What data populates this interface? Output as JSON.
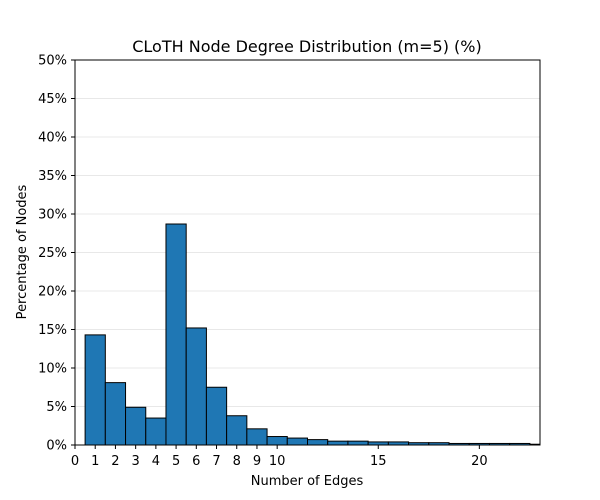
{
  "chart_data": {
    "type": "bar",
    "title": "CLoTH Node Degree Distribution (m=5) (%)",
    "xlabel": "Number of Edges",
    "ylabel": "Percentage of Nodes",
    "xlim": [
      0,
      23
    ],
    "ylim": [
      0,
      50
    ],
    "x_ticks": [
      0,
      1,
      2,
      3,
      4,
      5,
      6,
      7,
      8,
      9,
      10,
      15,
      20
    ],
    "y_ticks": [
      0,
      5,
      10,
      15,
      20,
      25,
      30,
      35,
      40,
      45,
      50
    ],
    "y_tick_suffix": "%",
    "grid": "horizontal, light",
    "bar_color": "#1f77b4",
    "edge_color": "#000000",
    "bins": [
      {
        "start": 0.5,
        "end": 1.5,
        "value": 14.3
      },
      {
        "start": 1.5,
        "end": 2.5,
        "value": 8.1
      },
      {
        "start": 2.5,
        "end": 3.5,
        "value": 4.9
      },
      {
        "start": 3.5,
        "end": 4.5,
        "value": 3.5
      },
      {
        "start": 4.5,
        "end": 5.5,
        "value": 28.7
      },
      {
        "start": 5.5,
        "end": 6.5,
        "value": 15.2
      },
      {
        "start": 6.5,
        "end": 7.5,
        "value": 7.5
      },
      {
        "start": 7.5,
        "end": 8.5,
        "value": 3.8
      },
      {
        "start": 8.5,
        "end": 9.5,
        "value": 2.1
      },
      {
        "start": 9.5,
        "end": 10.5,
        "value": 1.1
      },
      {
        "start": 10.5,
        "end": 11.5,
        "value": 0.9
      },
      {
        "start": 11.5,
        "end": 12.5,
        "value": 0.7
      },
      {
        "start": 12.5,
        "end": 13.5,
        "value": 0.5
      },
      {
        "start": 13.5,
        "end": 14.5,
        "value": 0.5
      },
      {
        "start": 14.5,
        "end": 15.5,
        "value": 0.4
      },
      {
        "start": 15.5,
        "end": 16.5,
        "value": 0.4
      },
      {
        "start": 16.5,
        "end": 17.5,
        "value": 0.3
      },
      {
        "start": 17.5,
        "end": 18.5,
        "value": 0.3
      },
      {
        "start": 18.5,
        "end": 19.5,
        "value": 0.2
      },
      {
        "start": 19.5,
        "end": 20.5,
        "value": 0.2
      },
      {
        "start": 20.5,
        "end": 21.5,
        "value": 0.2
      },
      {
        "start": 21.5,
        "end": 22.5,
        "value": 0.2
      },
      {
        "start": 22.5,
        "end": 23.0,
        "value": 0.1
      }
    ]
  }
}
